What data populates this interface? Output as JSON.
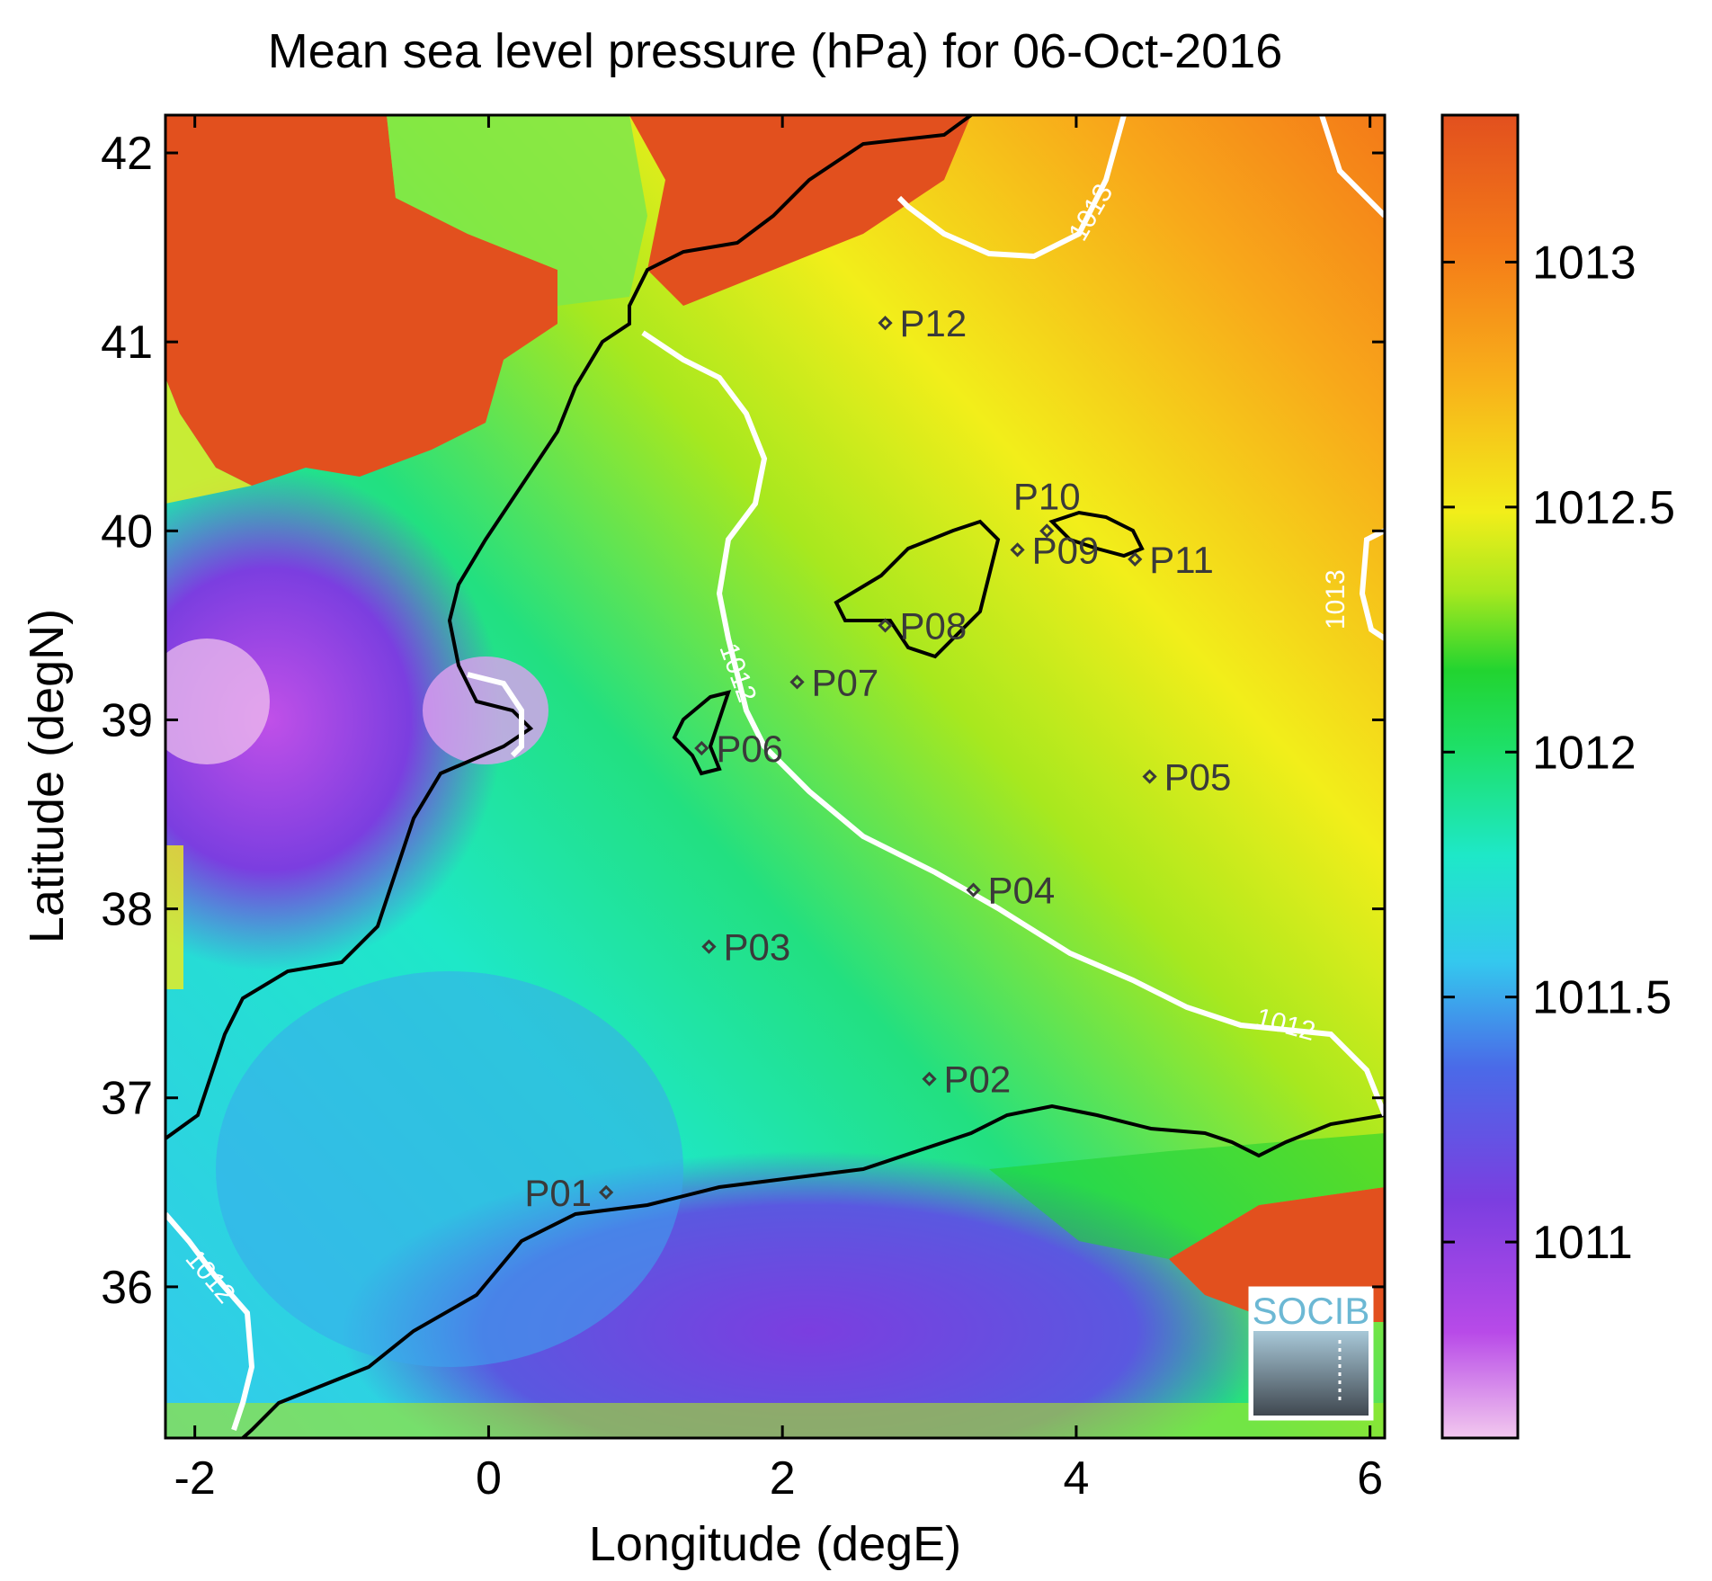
{
  "title": "Mean sea level pressure (hPa) for 06-Oct-2016",
  "x_axis": {
    "label": "Longitude (degE)",
    "range": [
      -2.2,
      6.1
    ],
    "ticks": [
      "-2",
      "0",
      "2",
      "4",
      "6"
    ],
    "tick_values": [
      -2,
      0,
      2,
      4,
      6
    ]
  },
  "y_axis": {
    "label": "Latitude (degN)",
    "range": [
      35.2,
      42.2
    ],
    "ticks": [
      "36",
      "37",
      "38",
      "39",
      "40",
      "41",
      "42"
    ],
    "tick_values": [
      36,
      37,
      38,
      39,
      40,
      41,
      42
    ]
  },
  "colorbar": {
    "range": [
      1010.6,
      1013.3
    ],
    "ticks": [
      "1011",
      "1011.5",
      "1012",
      "1012.5",
      "1013"
    ],
    "tick_values": [
      1011,
      1011.5,
      1012,
      1012.5,
      1013
    ],
    "colormap": [
      "#f2c8ee",
      "#b84ae8",
      "#7b3ee0",
      "#4a6ae8",
      "#34c8ee",
      "#1ee8c8",
      "#1ee06a",
      "#22d430",
      "#a8e81e",
      "#f2ee1a",
      "#f8b01a",
      "#f47a18",
      "#e2501e"
    ]
  },
  "contour_labels": [
    "1013",
    "1013",
    "1012",
    "1012",
    "1012"
  ],
  "stations": [
    {
      "id": "P01",
      "lon": 0.8,
      "lat": 36.5
    },
    {
      "id": "P02",
      "lon": 3.0,
      "lat": 37.1
    },
    {
      "id": "P03",
      "lon": 1.5,
      "lat": 37.8
    },
    {
      "id": "P04",
      "lon": 3.3,
      "lat": 38.1
    },
    {
      "id": "P05",
      "lon": 4.5,
      "lat": 38.7
    },
    {
      "id": "P06",
      "lon": 1.45,
      "lat": 38.85
    },
    {
      "id": "P07",
      "lon": 2.1,
      "lat": 39.2
    },
    {
      "id": "P08",
      "lon": 2.7,
      "lat": 39.5
    },
    {
      "id": "P09",
      "lon": 3.6,
      "lat": 39.9
    },
    {
      "id": "P10",
      "lon": 3.8,
      "lat": 40.0
    },
    {
      "id": "P11",
      "lon": 4.4,
      "lat": 39.85
    },
    {
      "id": "P12",
      "lon": 2.7,
      "lat": 41.1
    }
  ],
  "logo": {
    "text": "SOCIB"
  },
  "chart_data": {
    "type": "heatmap",
    "title": "Mean sea level pressure (hPa) for 06-Oct-2016",
    "xlabel": "Longitude (degE)",
    "ylabel": "Latitude (degN)",
    "xlim": [
      -2.2,
      6.1
    ],
    "ylim": [
      35.2,
      42.2
    ],
    "value_range": [
      1010.6,
      1013.3
    ],
    "unit": "hPa",
    "contour_levels": [
      1012,
      1013
    ],
    "markers": [
      {
        "name": "P01",
        "x": 0.8,
        "y": 36.5
      },
      {
        "name": "P02",
        "x": 3.0,
        "y": 37.1
      },
      {
        "name": "P03",
        "x": 1.5,
        "y": 37.8
      },
      {
        "name": "P04",
        "x": 3.3,
        "y": 38.1
      },
      {
        "name": "P05",
        "x": 4.5,
        "y": 38.7
      },
      {
        "name": "P06",
        "x": 1.45,
        "y": 38.85
      },
      {
        "name": "P07",
        "x": 2.1,
        "y": 39.2
      },
      {
        "name": "P08",
        "x": 2.7,
        "y": 39.5
      },
      {
        "name": "P09",
        "x": 3.6,
        "y": 39.9
      },
      {
        "name": "P10",
        "x": 3.8,
        "y": 40.0
      },
      {
        "name": "P11",
        "x": 4.4,
        "y": 39.85
      },
      {
        "name": "P12",
        "x": 2.7,
        "y": 41.1
      }
    ],
    "grid": false
  }
}
